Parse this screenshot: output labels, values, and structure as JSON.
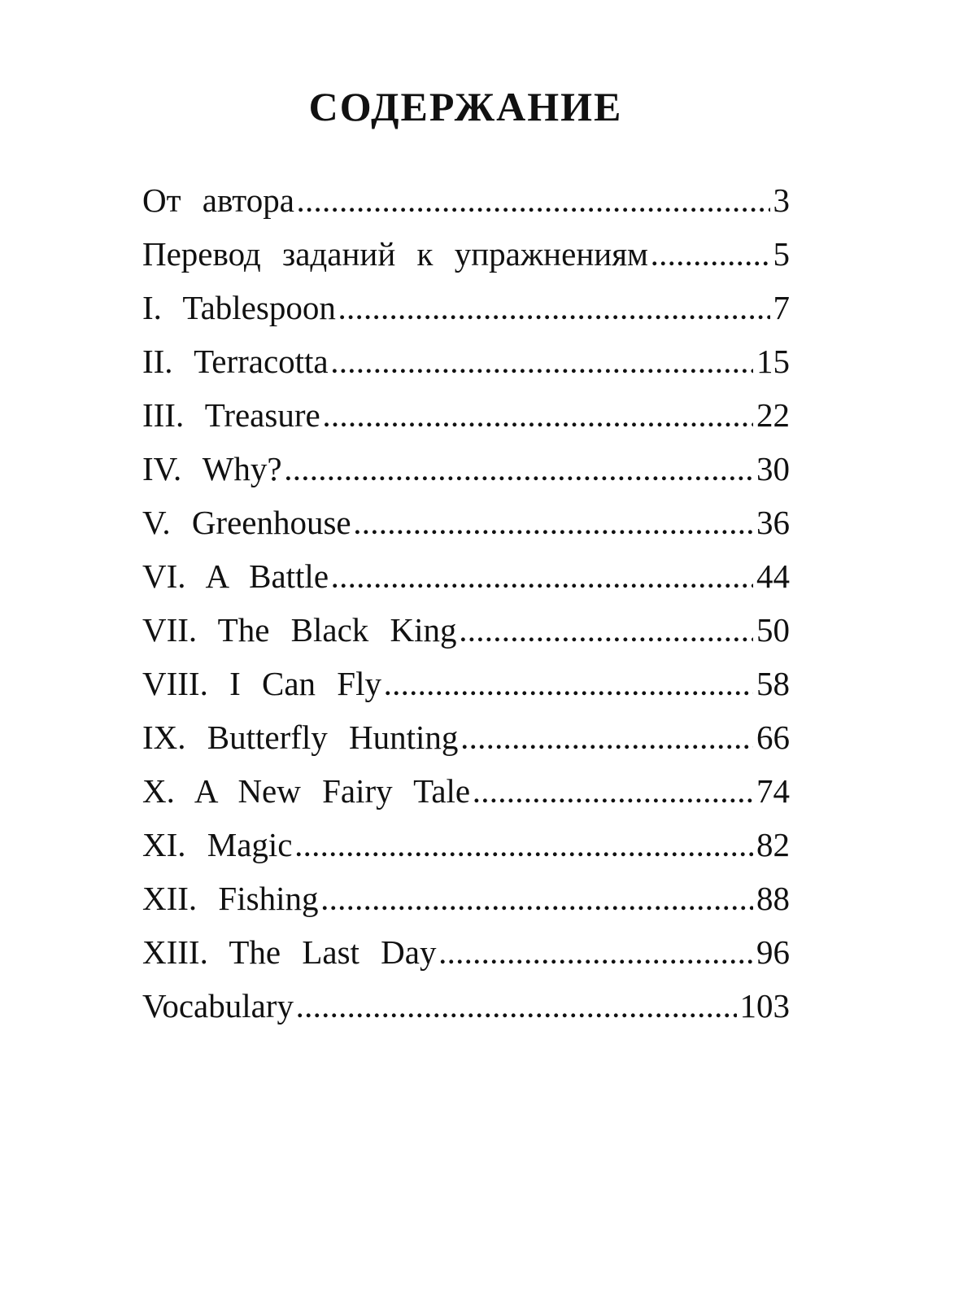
{
  "title": "СОДЕРЖАНИЕ",
  "entries": [
    {
      "label": "От автора",
      "page": "3"
    },
    {
      "label": "Перевод заданий к упражнениям",
      "page": "5"
    },
    {
      "label": "I. Tablespoon",
      "page": "7"
    },
    {
      "label": "II. Terracotta",
      "page": "15"
    },
    {
      "label": "III. Treasure",
      "page": "22"
    },
    {
      "label": "IV. Why?",
      "page": "30"
    },
    {
      "label": "V. Greenhouse",
      "page": "36"
    },
    {
      "label": "VI. A Battle",
      "page": "44"
    },
    {
      "label": "VII. The Black King",
      "page": "50"
    },
    {
      "label": "VIII. I Can Fly",
      "page": "58"
    },
    {
      "label": "IX. Butterfly Hunting",
      "page": "66"
    },
    {
      "label": "X. A New Fairy Tale",
      "page": "74"
    },
    {
      "label": "XI. Magic",
      "page": "82"
    },
    {
      "label": "XII. Fishing",
      "page": "88"
    },
    {
      "label": "XIII. The Last Day",
      "page": "96"
    },
    {
      "label": "Vocabulary",
      "page": "103"
    }
  ]
}
